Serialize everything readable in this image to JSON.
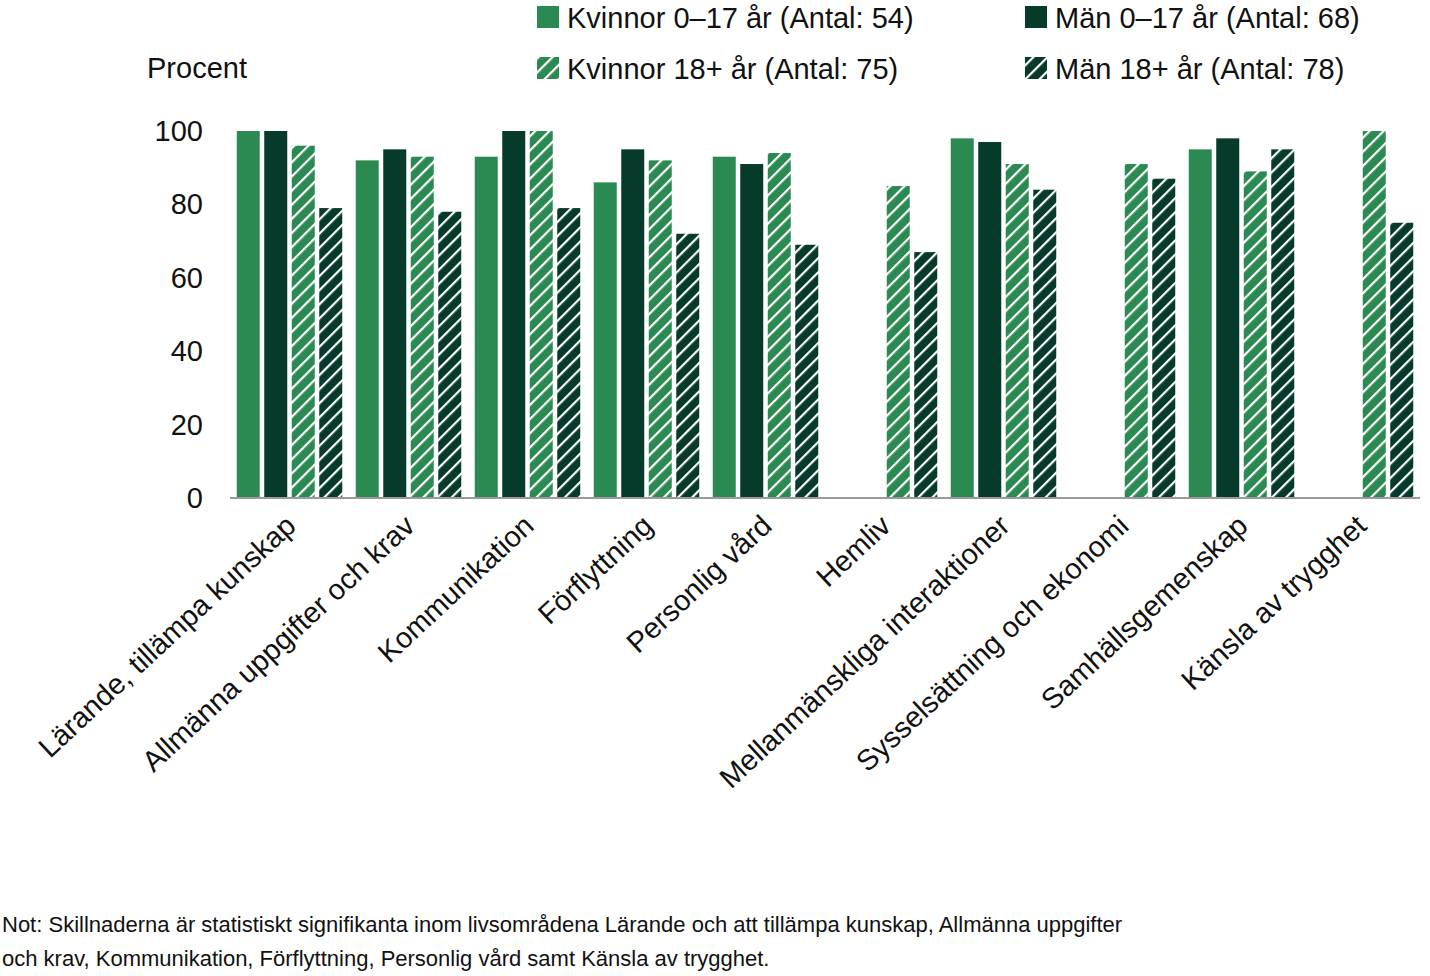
{
  "chart_data": {
    "type": "bar",
    "y_label": "Procent",
    "categories": [
      "Lärande, tillämpa kunskap",
      "Allmänna uppgifter och krav",
      "Kommunikation",
      "Förflyttning",
      "Personlig vård",
      "Hemliv",
      "Mellanmänskliga interaktioner",
      "Sysselsättning och ekonomi",
      "Samhällsgemenskap",
      "Känsla av trygghet"
    ],
    "series": [
      {
        "name": "Kvinnor 0–17 år (Antal: 54)",
        "color": "#2b8a52",
        "values": [
          100,
          92,
          93,
          86,
          93,
          null,
          98,
          null,
          95,
          null
        ]
      },
      {
        "name": "Män 0–17 år (Antal: 68)",
        "color": "#063a2b",
        "values": [
          100,
          95,
          100,
          95,
          91,
          null,
          97,
          null,
          98,
          null
        ]
      },
      {
        "name": "Kvinnor 18+ år (Antal: 75)",
        "color": "#2b8a52",
        "values": [
          96,
          93,
          100,
          92,
          94,
          85,
          91,
          91,
          89,
          100
        ]
      },
      {
        "name": "Män 18+ år (Antal: 78)",
        "color": "#063a2b",
        "values": [
          79,
          78,
          79,
          72,
          69,
          67,
          84,
          87,
          95,
          75
        ]
      }
    ],
    "ylim": [
      0,
      100
    ],
    "yticks": [
      0,
      20,
      40,
      60,
      80,
      100
    ],
    "grid": false,
    "legend": "top",
    "annotations": [
      "Not: Skillnaderna är statistiskt signifikanta inom livsområdena Lärande och att tillämpa kunskap, Allmänna uppgifter",
      "och krav, Kommunikation, Förflyttning, Personlig vård samt Känsla av trygghet."
    ]
  }
}
